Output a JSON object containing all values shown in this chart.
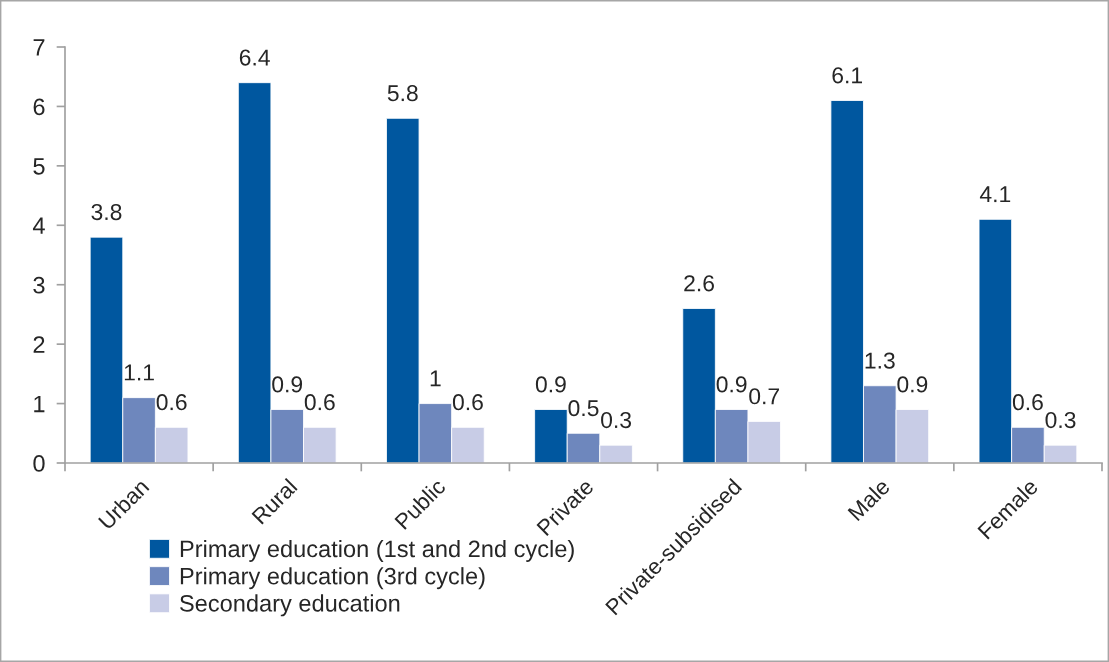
{
  "chart_data": {
    "type": "bar",
    "categories": [
      "Urban",
      "Rural",
      "Public",
      "Private",
      "Private-subsidised",
      "Male",
      "Female"
    ],
    "series": [
      {
        "name": "Primary education (1st and 2nd cycle)",
        "color": "#00579f",
        "values": [
          3.8,
          6.4,
          5.8,
          0.9,
          2.6,
          6.1,
          4.1
        ]
      },
      {
        "name": "Primary education (3rd cycle)",
        "color": "#6e87bd",
        "values": [
          1.1,
          0.9,
          1,
          0.5,
          0.9,
          1.3,
          0.6
        ]
      },
      {
        "name": "Secondary education",
        "color": "#c8cce6",
        "values": [
          0.6,
          0.6,
          0.6,
          0.3,
          0.7,
          0.9,
          0.3
        ]
      }
    ],
    "ylim": [
      0,
      7
    ],
    "yticks": [
      0,
      1,
      2,
      3,
      4,
      5,
      6,
      7
    ],
    "data_labels": true,
    "grid": false,
    "legend": "bottom"
  }
}
